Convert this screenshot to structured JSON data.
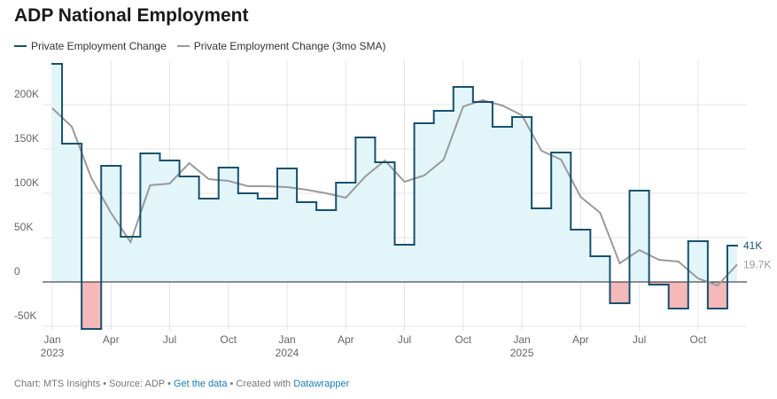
{
  "chart_data": {
    "type": "step-area",
    "title": "ADP National Employment",
    "categories": [
      "Jan\n2023",
      null,
      null,
      "Apr",
      null,
      null,
      "Jul",
      null,
      null,
      "Oct",
      null,
      null,
      "Jan\n2024",
      null,
      null,
      "Apr",
      null,
      null,
      "Jul",
      null,
      null,
      "Oct",
      null,
      null,
      "Jan\n2025",
      null,
      null,
      "Apr",
      null,
      null,
      "Jul",
      null,
      null,
      "Oct",
      null,
      null
    ],
    "series": [
      {
        "name": "Private Employment Change",
        "color": "#17516e",
        "positive_fill": "#e2f5f8",
        "negative_fill": "#f5b9b9",
        "values": [
          246,
          156,
          -53,
          131,
          51,
          145,
          137,
          119,
          94,
          129,
          100,
          94,
          128,
          90,
          81,
          112,
          163,
          135,
          42,
          179,
          193,
          220,
          203,
          175,
          186,
          83,
          146,
          59,
          29,
          -24,
          103,
          -3,
          -30,
          46,
          -30,
          41
        ],
        "value_labels": [
          null,
          null,
          null,
          null,
          null,
          null,
          null,
          null,
          null,
          null,
          null,
          null,
          null,
          null,
          null,
          null,
          null,
          null,
          null,
          null,
          null,
          null,
          null,
          null,
          null,
          null,
          null,
          null,
          null,
          null,
          null,
          null,
          null,
          null,
          null,
          "41K"
        ]
      },
      {
        "name": "Private Employment Change (3mo SMA)",
        "color": "#9a9a9a",
        "values": [
          196,
          175,
          117,
          78,
          45,
          109,
          111,
          134,
          116,
          114,
          108,
          108,
          107,
          104,
          100,
          95,
          119,
          137,
          113,
          120,
          138,
          198,
          205,
          199,
          188,
          148,
          138,
          96,
          78,
          21,
          36,
          25,
          23,
          4,
          -4,
          19.7
        ],
        "value_labels": [
          null,
          null,
          null,
          null,
          null,
          null,
          null,
          null,
          null,
          null,
          null,
          null,
          null,
          null,
          null,
          null,
          null,
          null,
          null,
          null,
          null,
          null,
          null,
          null,
          null,
          null,
          null,
          null,
          null,
          null,
          null,
          null,
          null,
          null,
          null,
          "19.7K"
        ]
      }
    ],
    "ylim": [
      -55,
      250
    ],
    "yticks": [
      {
        "value": -50,
        "label": "-50K"
      },
      0,
      {
        "value": 50,
        "label": "50K"
      },
      {
        "value": 100,
        "label": "100K"
      },
      {
        "value": 150,
        "label": "150K"
      },
      {
        "value": 200,
        "label": "200K"
      }
    ],
    "grid": true,
    "footer": {
      "credit": "Chart: MTS Insights • Source: ADP •",
      "data_link": "Get the data",
      "created": "• Created with",
      "tool_link": "Datawrapper"
    }
  }
}
